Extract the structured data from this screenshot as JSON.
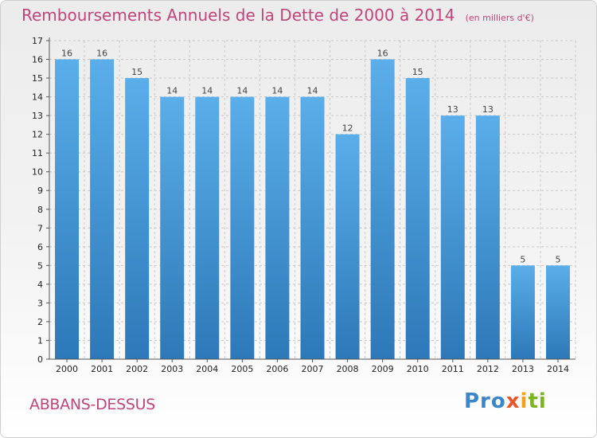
{
  "title": "Remboursements Annuels de la Dette de 2000 à 2014",
  "unit_note": "(en milliers d'€)",
  "location": "ABBANS-DESSUS",
  "logo_text": "Proxiti",
  "colors": {
    "title": "#c0457a",
    "bar_top": "#5aaeea",
    "bar_bottom": "#2d78b8",
    "logo_blue": "#3a86c8",
    "logo_orange": "#e8562a",
    "logo_yellow": "#f2a11e",
    "logo_green": "#7ab51d"
  },
  "chart_data": {
    "type": "bar",
    "title": "Remboursements Annuels de la Dette de 2000 à 2014",
    "categories": [
      "2000",
      "2001",
      "2002",
      "2003",
      "2004",
      "2005",
      "2006",
      "2007",
      "2008",
      "2009",
      "2010",
      "2011",
      "2012",
      "2013",
      "2014"
    ],
    "values": [
      16,
      16,
      15,
      14,
      14,
      14,
      14,
      14,
      12,
      16,
      15,
      13,
      13,
      5,
      5
    ],
    "ylim": [
      0,
      17
    ],
    "yticks": [
      0,
      1,
      2,
      3,
      4,
      5,
      6,
      7,
      8,
      9,
      10,
      11,
      12,
      13,
      14,
      15,
      16,
      17
    ],
    "grid": true,
    "legend": "none"
  }
}
